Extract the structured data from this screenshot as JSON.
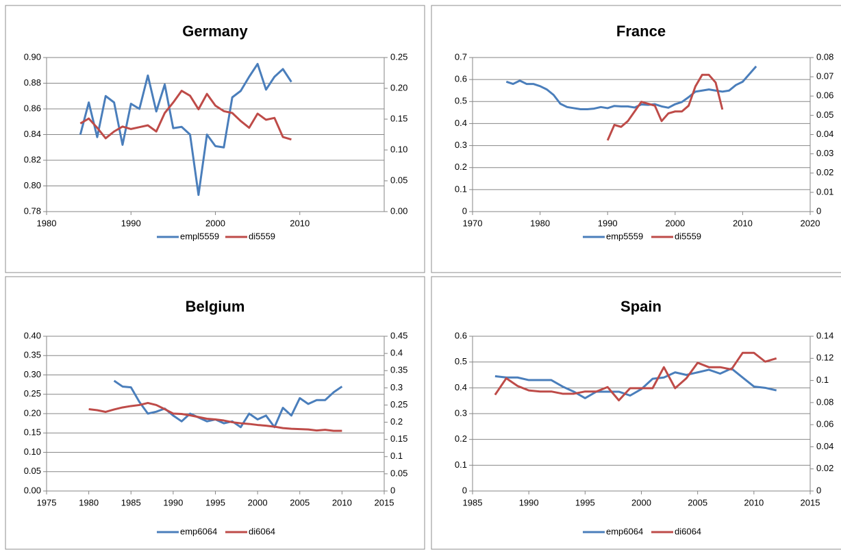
{
  "chart_data": [
    {
      "type": "line",
      "title": "Germany",
      "xlim": [
        1980,
        2020
      ],
      "xticks": [
        1980,
        1990,
        2000,
        2010
      ],
      "ylim": [
        0.78,
        0.9
      ],
      "yticks": [
        0.78,
        {
          "value": 0.8,
          "label": "0.80"
        },
        0.82,
        0.84,
        0.86,
        0.88,
        {
          "value": 0.9,
          "label": "0.90"
        }
      ],
      "y2lim": [
        0,
        0.25
      ],
      "y2ticks": [
        {
          "value": 0,
          "label": "0.00"
        },
        0.05,
        {
          "value": 0.1,
          "label": "0.10"
        },
        0.15,
        {
          "value": 0.2,
          "label": "0.20"
        },
        0.25
      ],
      "grid": true,
      "series": [
        {
          "name": "empl5559",
          "color": "#4a7ebb",
          "x": [
            1984,
            1985,
            1986,
            1987,
            1988,
            1989,
            1990,
            1991,
            1992,
            1993,
            1994,
            1995,
            1996,
            1997,
            1998,
            1999,
            2000,
            2001,
            2002,
            2003,
            2004,
            2005,
            2006,
            2007,
            2008,
            2009
          ],
          "values": [
            0.84,
            0.865,
            0.838,
            0.87,
            0.865,
            0.832,
            0.864,
            0.86,
            0.886,
            0.858,
            0.879,
            0.845,
            0.846,
            0.84,
            0.793,
            0.84,
            0.831,
            0.83,
            0.869,
            0.874,
            0.885,
            0.895,
            0.875,
            0.885,
            0.891,
            0.881
          ]
        },
        {
          "name": "di5559",
          "color": "#be4b48",
          "axis": "y2",
          "x": [
            1984,
            1985,
            1986,
            1987,
            1988,
            1989,
            1990,
            1991,
            1992,
            1993,
            1994,
            1995,
            1996,
            1997,
            1998,
            1999,
            2000,
            2001,
            2002,
            2003,
            2004,
            2005,
            2006,
            2007,
            2008,
            2009
          ],
          "values": [
            0.143,
            0.151,
            0.136,
            0.119,
            0.13,
            0.138,
            0.134,
            0.137,
            0.14,
            0.13,
            0.16,
            0.177,
            0.196,
            0.188,
            0.166,
            0.191,
            0.172,
            0.163,
            0.16,
            0.147,
            0.136,
            0.159,
            0.149,
            0.152,
            0.121,
            0.117
          ]
        }
      ]
    },
    {
      "type": "line",
      "title": "France",
      "xlim": [
        1970,
        2020
      ],
      "xticks": [
        1970,
        1980,
        1990,
        2000,
        2010,
        2020
      ],
      "ylim": [
        0,
        0.7
      ],
      "yticks": [
        0,
        0.1,
        0.2,
        0.3,
        0.4,
        0.5,
        0.6,
        0.7
      ],
      "y2lim": [
        0,
        0.08
      ],
      "y2ticks": [
        0,
        0.01,
        0.02,
        0.03,
        0.04,
        0.05,
        0.06,
        0.07,
        0.08
      ],
      "grid": true,
      "series": [
        {
          "name": "emp5559",
          "color": "#4a7ebb",
          "x": [
            1975,
            1976,
            1977,
            1978,
            1979,
            1980,
            1981,
            1982,
            1983,
            1984,
            1985,
            1986,
            1987,
            1988,
            1989,
            1990,
            1991,
            1992,
            1993,
            1994,
            1995,
            1996,
            1997,
            1998,
            1999,
            2000,
            2001,
            2002,
            2003,
            2004,
            2005,
            2006,
            2007,
            2008,
            2009,
            2010,
            2011,
            2012
          ],
          "values": [
            0.59,
            0.58,
            0.595,
            0.58,
            0.58,
            0.57,
            0.555,
            0.53,
            0.49,
            0.475,
            0.47,
            0.465,
            0.465,
            0.468,
            0.475,
            0.47,
            0.48,
            0.478,
            0.478,
            0.473,
            0.487,
            0.485,
            0.488,
            0.478,
            0.472,
            0.488,
            0.498,
            0.52,
            0.545,
            0.55,
            0.555,
            0.55,
            0.545,
            0.55,
            0.575,
            0.59,
            0.625,
            0.66
          ]
        },
        {
          "name": "di5559",
          "color": "#be4b48",
          "axis": "y2",
          "x": [
            1990,
            1991,
            1992,
            1993,
            1994,
            1995,
            1996,
            1997,
            1998,
            1999,
            2000,
            2001,
            2002,
            2003,
            2004,
            2005,
            2006,
            2007
          ],
          "values": [
            0.037,
            0.045,
            0.044,
            0.047,
            0.052,
            0.057,
            0.056,
            0.055,
            0.047,
            0.051,
            0.052,
            0.052,
            0.055,
            0.065,
            0.071,
            0.071,
            0.067,
            0.053
          ]
        }
      ]
    },
    {
      "type": "line",
      "title": "Belgium",
      "xlim": [
        1975,
        2015
      ],
      "xticks": [
        1975,
        1980,
        1985,
        1990,
        1995,
        2000,
        2005,
        2010,
        2015
      ],
      "ylim": [
        0,
        0.4
      ],
      "yticks": [
        {
          "value": 0,
          "label": "0.00"
        },
        0.05,
        {
          "value": 0.1,
          "label": "0.10"
        },
        0.15,
        {
          "value": 0.2,
          "label": "0.20"
        },
        0.25,
        {
          "value": 0.3,
          "label": "0.30"
        },
        0.35,
        {
          "value": 0.4,
          "label": "0.40"
        }
      ],
      "y2lim": [
        0,
        0.45
      ],
      "y2ticks": [
        0,
        0.05,
        0.1,
        0.15,
        0.2,
        0.25,
        0.3,
        0.35,
        0.4,
        0.45
      ],
      "grid": true,
      "series": [
        {
          "name": "emp6064",
          "color": "#4a7ebb",
          "x": [
            1983,
            1984,
            1985,
            1986,
            1987,
            1988,
            1989,
            1990,
            1991,
            1992,
            1993,
            1994,
            1995,
            1996,
            1997,
            1998,
            1999,
            2000,
            2001,
            2002,
            2003,
            2004,
            2005,
            2006,
            2007,
            2008,
            2009,
            2010
          ],
          "values": [
            0.285,
            0.27,
            0.268,
            0.23,
            0.2,
            0.205,
            0.213,
            0.195,
            0.18,
            0.2,
            0.19,
            0.18,
            0.185,
            0.175,
            0.18,
            0.165,
            0.2,
            0.185,
            0.195,
            0.165,
            0.215,
            0.195,
            0.24,
            0.225,
            0.235,
            0.235,
            0.255,
            0.27
          ]
        },
        {
          "name": "di6064",
          "color": "#be4b48",
          "axis": "y2",
          "x": [
            1980,
            1981,
            1982,
            1983,
            1984,
            1985,
            1986,
            1987,
            1988,
            1989,
            1990,
            1991,
            1992,
            1993,
            1994,
            1995,
            1996,
            1997,
            1998,
            1999,
            2000,
            2001,
            2002,
            2003,
            2004,
            2005,
            2006,
            2007,
            2008,
            2009,
            2010
          ],
          "values": [
            0.238,
            0.235,
            0.23,
            0.237,
            0.243,
            0.247,
            0.25,
            0.256,
            0.25,
            0.238,
            0.225,
            0.224,
            0.22,
            0.215,
            0.21,
            0.208,
            0.205,
            0.2,
            0.197,
            0.195,
            0.192,
            0.19,
            0.187,
            0.183,
            0.181,
            0.18,
            0.179,
            0.176,
            0.178,
            0.175,
            0.175
          ]
        }
      ]
    },
    {
      "type": "line",
      "title": "Spain",
      "xlim": [
        1985,
        2015
      ],
      "xticks": [
        1985,
        1990,
        1995,
        2000,
        2005,
        2010,
        2015
      ],
      "ylim": [
        0,
        0.6
      ],
      "yticks": [
        0,
        0.1,
        0.2,
        0.3,
        0.4,
        0.5,
        0.6
      ],
      "y2lim": [
        0,
        0.14
      ],
      "y2ticks": [
        0,
        0.02,
        0.04,
        0.06,
        0.08,
        0.1,
        0.12,
        0.14
      ],
      "grid": true,
      "series": [
        {
          "name": "emp6064",
          "color": "#4a7ebb",
          "x": [
            1987,
            1988,
            1989,
            1990,
            1991,
            1992,
            1993,
            1994,
            1995,
            1996,
            1997,
            1998,
            1999,
            2000,
            2001,
            2002,
            2003,
            2004,
            2005,
            2006,
            2007,
            2008,
            2009,
            2010,
            2011,
            2012
          ],
          "values": [
            0.445,
            0.44,
            0.44,
            0.43,
            0.43,
            0.43,
            0.405,
            0.385,
            0.36,
            0.385,
            0.385,
            0.385,
            0.37,
            0.395,
            0.435,
            0.44,
            0.46,
            0.45,
            0.46,
            0.47,
            0.455,
            0.475,
            0.44,
            0.405,
            0.4,
            0.39
          ]
        },
        {
          "name": "di6064",
          "color": "#be4b48",
          "axis": "y2",
          "x": [
            1987,
            1988,
            1989,
            1990,
            1991,
            1992,
            1993,
            1994,
            1995,
            1996,
            1997,
            1998,
            1999,
            2000,
            2001,
            2002,
            2003,
            2004,
            2005,
            2006,
            2007,
            2008,
            2009,
            2010,
            2011,
            2012
          ],
          "values": [
            0.087,
            0.102,
            0.095,
            0.091,
            0.09,
            0.09,
            0.088,
            0.088,
            0.09,
            0.09,
            0.094,
            0.082,
            0.093,
            0.093,
            0.093,
            0.112,
            0.093,
            0.102,
            0.116,
            0.112,
            0.112,
            0.11,
            0.125,
            0.125,
            0.117,
            0.12
          ]
        }
      ]
    }
  ]
}
